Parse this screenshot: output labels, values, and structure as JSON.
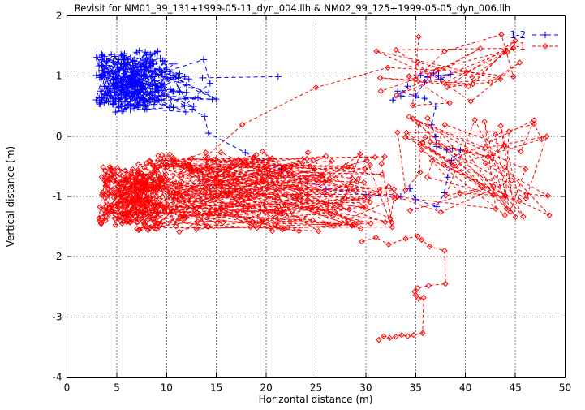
{
  "window": {
    "background": "#ffffff",
    "foreground": "#000000"
  },
  "chart_data": {
    "type": "scatter",
    "title": "Revisit for NM01_99_131+1999-05-11_dyn_004.llh & NM02_99_125+1999-05-05_dyn_006.llh",
    "xlabel": "Horizontal distance (m)",
    "ylabel": "Vertical distance (m)",
    "xlim": [
      0,
      50
    ],
    "ylim": [
      -4,
      2
    ],
    "xticks": [
      0,
      5,
      10,
      15,
      20,
      25,
      30,
      35,
      40,
      45,
      50
    ],
    "yticks": [
      -4,
      -3,
      -2,
      -1,
      0,
      1,
      2
    ],
    "grid": true,
    "grid_color": "#000000",
    "legend": {
      "position": "top-right-inside"
    },
    "series": [
      {
        "name": "1-2",
        "color": "#0000ff",
        "marker": "plus",
        "linestyle": "dashed",
        "dash": [
          5,
          4
        ],
        "clusters": [
          {
            "n": 170,
            "x": [
              2.9,
              9.6
            ],
            "y": [
              0.48,
              1.42
            ],
            "seed": 11,
            "xbias": 1
          },
          {
            "n": 90,
            "x": [
              4.5,
              15.0
            ],
            "y": [
              0.4,
              1.3
            ],
            "seed": 12,
            "xbias": 1.25
          }
        ],
        "paths": [
          [
            [
              13.6,
              0.97
            ],
            [
              21.2,
              0.99
            ]
          ],
          [
            [
              12.6,
              0.45
            ],
            [
              13.8,
              0.33
            ],
            [
              14.2,
              0.05
            ],
            [
              17.9,
              -0.27
            ],
            [
              21.5,
              -0.55
            ],
            [
              26.0,
              -0.88
            ],
            [
              30.0,
              -0.97
            ],
            [
              33.5,
              -1.0
            ],
            [
              34.4,
              -0.87
            ],
            [
              35.0,
              -1.05
            ],
            [
              37.1,
              -1.17
            ],
            [
              37.9,
              -0.94
            ],
            [
              38.2,
              -0.68
            ],
            [
              38.6,
              -0.4
            ],
            [
              39.5,
              -0.23
            ],
            [
              38.7,
              -0.2
            ],
            [
              38.1,
              -0.23
            ],
            [
              37.1,
              -0.17
            ],
            [
              37.0,
              -0.01
            ],
            [
              36.6,
              0.19
            ],
            [
              37.0,
              0.5
            ],
            [
              35.9,
              0.63
            ],
            [
              33.5,
              0.67
            ],
            [
              34.2,
              0.83
            ],
            [
              32.7,
              0.6
            ],
            [
              33.2,
              0.75
            ],
            [
              35.0,
              0.67
            ],
            [
              35.9,
              0.9
            ],
            [
              36.5,
              1.0
            ],
            [
              37.3,
              1.01
            ],
            [
              38.5,
              1.03
            ],
            [
              37.5,
              0.95
            ],
            [
              36.8,
              1.05
            ],
            [
              36.2,
              0.98
            ],
            [
              35.5,
              1.02
            ]
          ]
        ]
      },
      {
        "name": "2-1",
        "color": "#ff0000",
        "marker": "diamond",
        "linestyle": "dashed",
        "dash": [
          4,
          3
        ],
        "clusters": [
          {
            "n": 190,
            "x": [
              3.2,
              10.0
            ],
            "y": [
              -1.48,
              -0.5
            ],
            "seed": 21,
            "xbias": 1
          },
          {
            "n": 260,
            "x": [
              7.0,
              33.0
            ],
            "y": [
              -1.6,
              -0.25
            ],
            "seed": 22,
            "xbias": 1.2
          },
          {
            "n": 60,
            "x": [
              33.0,
              48.5
            ],
            "y": [
              -1.35,
              0.35
            ],
            "seed": 23,
            "xbias": 1
          },
          {
            "n": 24,
            "x": [
              30.0,
              46.0
            ],
            "y": [
              0.4,
              1.7
            ],
            "seed": 24,
            "xbias": 1
          }
        ],
        "paths": [
          [
            [
              13.9,
              -0.35
            ],
            [
              17.6,
              0.19
            ],
            [
              25.0,
              0.81
            ],
            [
              32.2,
              1.14
            ],
            [
              37.1,
              1.1
            ],
            [
              40.1,
              1.07
            ],
            [
              44.8,
              0.99
            ],
            [
              43.6,
              1.69
            ],
            [
              37.9,
              1.41
            ],
            [
              35.0,
              0.95
            ],
            [
              31.5,
              0.75
            ]
          ],
          [
            [
              29.6,
              -1.75
            ],
            [
              31.0,
              -1.68
            ],
            [
              32.3,
              -1.8
            ],
            [
              34.0,
              -1.7
            ],
            [
              35.2,
              -1.66
            ],
            [
              35.6,
              -1.72
            ],
            [
              36.4,
              -1.83
            ],
            [
              37.9,
              -1.9
            ],
            [
              38.0,
              -2.45
            ],
            [
              36.3,
              -2.48
            ],
            [
              35.2,
              -2.52
            ],
            [
              34.9,
              -2.58
            ],
            [
              35.0,
              -2.64
            ],
            [
              35.3,
              -2.7
            ],
            [
              35.8,
              -2.68
            ],
            [
              35.7,
              -3.27
            ],
            [
              34.8,
              -3.3
            ],
            [
              34.2,
              -3.32
            ],
            [
              33.6,
              -3.3
            ],
            [
              33.0,
              -3.33
            ],
            [
              32.4,
              -3.35
            ],
            [
              31.8,
              -3.32
            ],
            [
              31.3,
              -3.38
            ]
          ]
        ]
      }
    ]
  }
}
